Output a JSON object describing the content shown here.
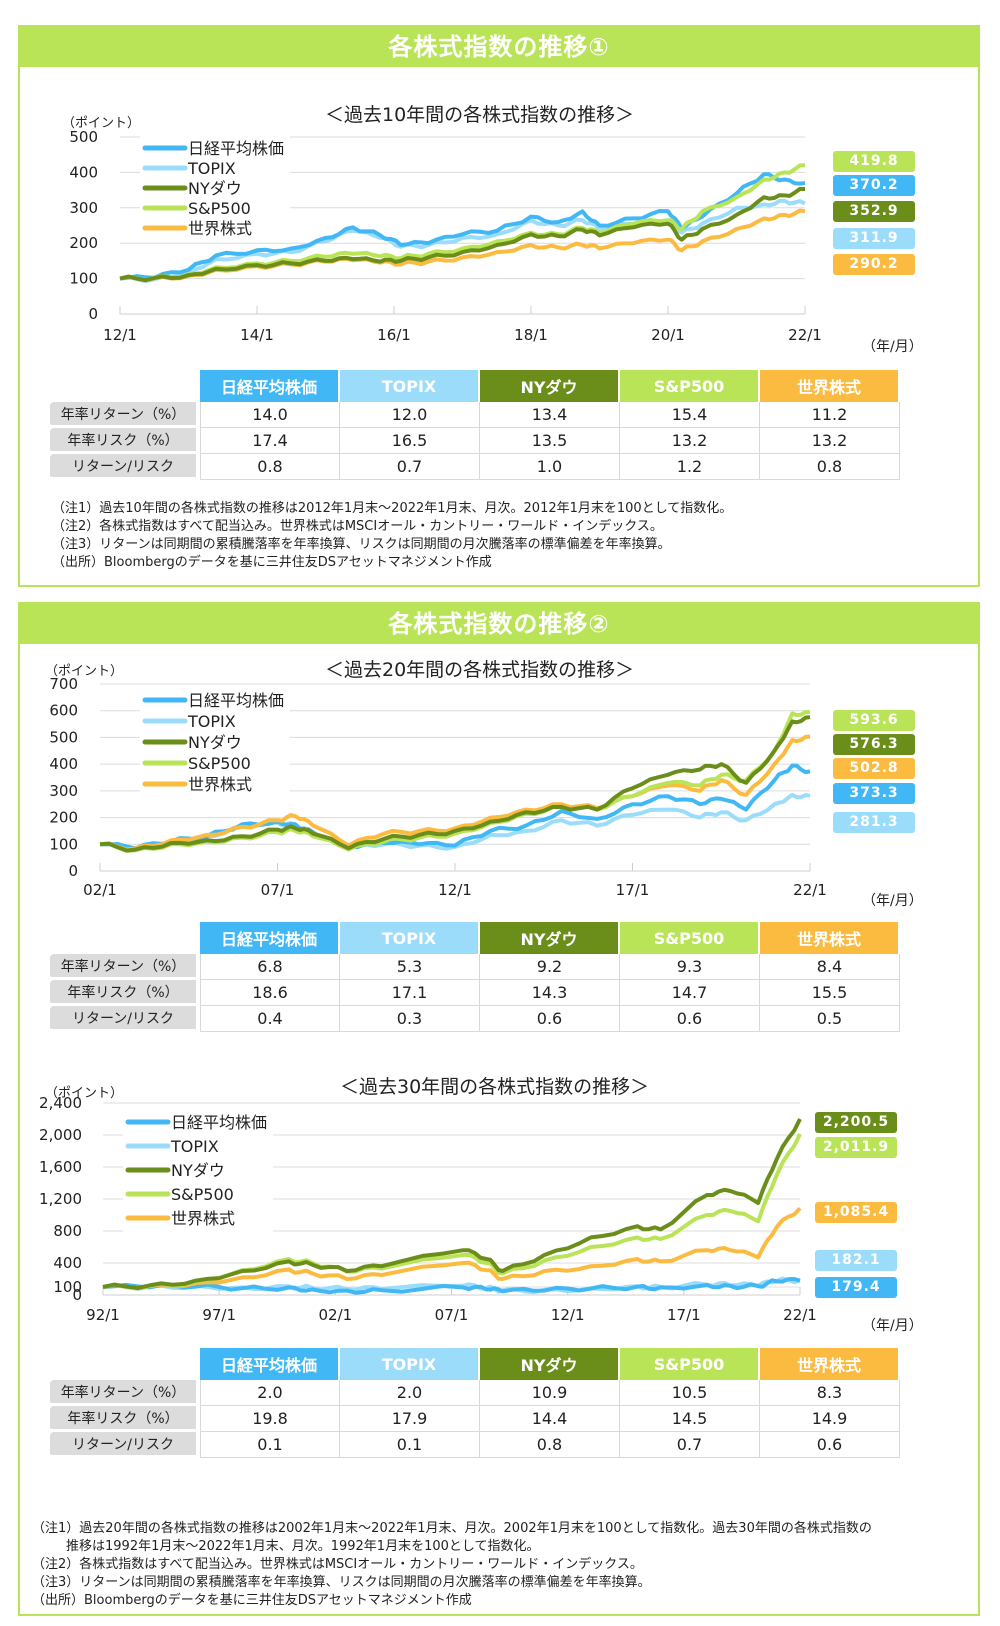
{
  "colors": {
    "nikkei": "#41b8f5",
    "topix": "#9bdcfb",
    "nydow": "#6b8e1a",
    "sp500": "#b9e457",
    "world": "#fbbb40",
    "header": "#b9e457"
  },
  "panels": [
    {
      "header": "各株式指数の推移①",
      "notes": [
        {
          "tag": "（注1）",
          "text": "過去10年間の各株式指数の推移は2012年1月末～2022年1月末、月次。2012年1月末を100として指数化。"
        },
        {
          "tag": "（注2）",
          "text": "各株式指数はすべて配当込み。世界株式はMSCIオール・カントリー・ワールド・インデックス。"
        },
        {
          "tag": "（注3）",
          "text": "リターンは同期間の累積騰落率を年率換算、リスクは同期間の月次騰落率の標準偏差を年率換算。"
        },
        {
          "tag": "（出所）",
          "text": "Bloombergのデータを基に三井住友DSアセットマネジメント作成"
        }
      ]
    },
    {
      "header": "各株式指数の推移②",
      "notes": [
        {
          "tag": "（注1）",
          "text": "過去20年間の各株式指数の推移は2002年1月末～2022年1月末、月次。2002年1月末を100として指数化。過去30年間の各株式指数の"
        },
        {
          "tag": "",
          "text": "推移は1992年1月末～2022年1月末、月次。1992年1月末を100として指数化。"
        },
        {
          "tag": "（注2）",
          "text": "各株式指数はすべて配当込み。世界株式はMSCIオール・カントリー・ワールド・インデックス。"
        },
        {
          "tag": "（注3）",
          "text": "リターンは同期間の累積騰落率を年率換算、リスクは同期間の月次騰落率の標準偏差を年率換算。"
        },
        {
          "tag": "（出所）",
          "text": "Bloombergのデータを基に三井住友DSアセットマネジメント作成"
        }
      ]
    }
  ],
  "table_headers": [
    "日経平均株価",
    "TOPIX",
    "NYダウ",
    "S&P500",
    "世界株式"
  ],
  "row_labels": [
    "年率リターン（%）",
    "年率リスク（%）",
    "リターン/リスク"
  ],
  "chart_data": [
    {
      "type": "line",
      "title": "＜過去10年間の各株式指数の推移＞",
      "ylabel": "（ポイント）",
      "xlabel": "（年/月）",
      "ylim": [
        0,
        500
      ],
      "yticks": [
        0,
        100,
        200,
        300,
        400,
        500
      ],
      "ytick_labels": [
        "0",
        "100",
        "200",
        "300",
        "400",
        "500"
      ],
      "xlim": [
        2012.0,
        2022.0
      ],
      "xticks": [
        2012,
        2014,
        2016,
        2018,
        2020,
        2022
      ],
      "xtick_labels": [
        "12/1",
        "14/1",
        "16/1",
        "18/1",
        "20/1",
        "22/1"
      ],
      "grid": true,
      "legend": "top-left",
      "x": [
        2012.0,
        2012.5,
        2013.0,
        2013.4,
        2014.0,
        2014.5,
        2015.0,
        2015.4,
        2015.8,
        2016.1,
        2016.5,
        2017.0,
        2017.5,
        2018.0,
        2018.4,
        2018.75,
        2019.0,
        2019.5,
        2020.0,
        2020.2,
        2020.5,
        2021.0,
        2021.4,
        2021.7,
        2022.0
      ],
      "series": [
        {
          "name": "日経平均株価",
          "key": "nikkei",
          "end_label": "370.2",
          "values": [
            100,
            102,
            125,
            165,
            180,
            185,
            215,
            245,
            222,
            195,
            200,
            225,
            235,
            275,
            260,
            290,
            250,
            270,
            290,
            240,
            275,
            340,
            395,
            380,
            370
          ]
        },
        {
          "name": "TOPIX",
          "key": "topix",
          "end_label": "311.9",
          "values": [
            100,
            98,
            120,
            155,
            170,
            175,
            205,
            235,
            215,
            190,
            195,
            215,
            225,
            265,
            250,
            265,
            240,
            255,
            265,
            230,
            255,
            300,
            310,
            320,
            312
          ]
        },
        {
          "name": "NYダウ",
          "key": "nydow",
          "end_label": "352.9",
          "values": [
            100,
            102,
            110,
            128,
            138,
            143,
            150,
            155,
            148,
            150,
            160,
            175,
            195,
            225,
            220,
            238,
            222,
            245,
            255,
            210,
            240,
            280,
            330,
            335,
            353
          ]
        },
        {
          "name": "S&P500",
          "key": "sp500",
          "end_label": "419.8",
          "values": [
            100,
            103,
            112,
            132,
            143,
            150,
            162,
            170,
            163,
            158,
            170,
            185,
            205,
            230,
            225,
            243,
            228,
            255,
            265,
            240,
            290,
            330,
            380,
            400,
            420
          ]
        },
        {
          "name": "世界株式",
          "key": "world",
          "end_label": "290.2",
          "values": [
            100,
            101,
            108,
            125,
            135,
            140,
            148,
            152,
            145,
            140,
            148,
            160,
            175,
            195,
            188,
            195,
            185,
            200,
            210,
            180,
            205,
            240,
            270,
            280,
            290
          ]
        }
      ],
      "end_label_order": [
        "sp500",
        "nikkei",
        "nydow",
        "topix",
        "world"
      ],
      "table": {
        "returns": [
          "14.0",
          "12.0",
          "13.4",
          "15.4",
          "11.2"
        ],
        "risks": [
          "17.4",
          "16.5",
          "13.5",
          "13.2",
          "13.2"
        ],
        "ratios": [
          "0.8",
          "0.7",
          "1.0",
          "1.2",
          "0.8"
        ]
      }
    },
    {
      "type": "line",
      "title": "＜過去20年間の各株式指数の推移＞",
      "ylabel": "（ポイント）",
      "xlabel": "（年/月）",
      "ylim": [
        0,
        700
      ],
      "yticks": [
        0,
        100,
        200,
        300,
        400,
        500,
        600,
        700
      ],
      "ytick_labels": [
        "0",
        "100",
        "200",
        "300",
        "400",
        "500",
        "600",
        "700"
      ],
      "xlim": [
        2002.0,
        2022.0
      ],
      "xticks": [
        2002,
        2007,
        2012,
        2017,
        2022
      ],
      "xtick_labels": [
        "02/1",
        "07/1",
        "12/1",
        "17/1",
        "22/1"
      ],
      "grid": true,
      "legend": "top-left",
      "x": [
        2002.0,
        2003.0,
        2004.0,
        2005.0,
        2006.0,
        2007.0,
        2007.5,
        2008.0,
        2009.0,
        2010.0,
        2011.0,
        2012.0,
        2013.0,
        2014.0,
        2015.0,
        2016.0,
        2017.0,
        2018.0,
        2018.9,
        2019.5,
        2020.2,
        2021.0,
        2021.5,
        2022.0
      ],
      "series": [
        {
          "name": "日経平均株価",
          "key": "nikkei",
          "end_label": "373.3",
          "values": [
            100,
            85,
            110,
            130,
            175,
            185,
            175,
            145,
            90,
            105,
            100,
            95,
            150,
            170,
            225,
            195,
            250,
            280,
            250,
            270,
            230,
            340,
            395,
            373
          ]
        },
        {
          "name": "TOPIX",
          "key": "topix",
          "end_label": "281.3",
          "values": [
            100,
            82,
            108,
            128,
            170,
            180,
            168,
            140,
            85,
            100,
            95,
            90,
            135,
            150,
            190,
            170,
            210,
            230,
            200,
            220,
            190,
            250,
            285,
            281
          ]
        },
        {
          "name": "NYダウ",
          "key": "nydow",
          "end_label": "576.3",
          "values": [
            100,
            80,
            105,
            115,
            130,
            155,
            160,
            140,
            85,
            120,
            135,
            150,
            185,
            220,
            240,
            230,
            310,
            360,
            380,
            400,
            330,
            450,
            560,
            576
          ]
        },
        {
          "name": "S&P500",
          "key": "sp500",
          "end_label": "593.6",
          "values": [
            100,
            78,
            100,
            110,
            125,
            145,
            150,
            130,
            80,
            110,
            125,
            140,
            180,
            215,
            240,
            230,
            280,
            330,
            320,
            360,
            340,
            450,
            590,
            594
          ]
        },
        {
          "name": "世界株式",
          "key": "world",
          "end_label": "502.8",
          "values": [
            100,
            85,
            115,
            135,
            165,
            190,
            205,
            170,
            95,
            140,
            150,
            160,
            200,
            230,
            250,
            235,
            280,
            320,
            300,
            340,
            285,
            400,
            490,
            503
          ]
        }
      ],
      "end_label_order": [
        "sp500",
        "nydow",
        "world",
        "nikkei",
        "topix"
      ],
      "table": {
        "returns": [
          "6.8",
          "5.3",
          "9.2",
          "9.3",
          "8.4"
        ],
        "risks": [
          "18.6",
          "17.1",
          "14.3",
          "14.7",
          "15.5"
        ],
        "ratios": [
          "0.4",
          "0.3",
          "0.6",
          "0.6",
          "0.5"
        ]
      }
    },
    {
      "type": "line",
      "title": "＜過去30年間の各株式指数の推移＞",
      "ylabel": "（ポイント）",
      "xlabel": "（年/月）",
      "ylim": [
        0,
        2400
      ],
      "yticks": [
        0,
        100,
        400,
        800,
        1200,
        1600,
        2000,
        2400
      ],
      "ytick_labels": [
        "0",
        "100",
        "400",
        "800",
        "1,200",
        "1,600",
        "2,000",
        "2,400"
      ],
      "xlim": [
        1992.0,
        2022.0
      ],
      "xticks": [
        1992,
        1997,
        2002,
        2007,
        2012,
        2017,
        2022
      ],
      "xtick_labels": [
        "92/1",
        "97/1",
        "02/1",
        "07/1",
        "12/1",
        "17/1",
        "22/1"
      ],
      "grid": true,
      "legend": "top-left",
      "x": [
        1992.0,
        1994.0,
        1996.0,
        1998.0,
        2000.0,
        2001.0,
        2002.5,
        2004.0,
        2007.5,
        2008.5,
        2009.2,
        2011.0,
        2013.0,
        2015.0,
        2016.0,
        2018.0,
        2019.0,
        2020.2,
        2021.0,
        2022.0
      ],
      "series": [
        {
          "name": "日経平均株価",
          "key": "nikkei",
          "end_label": "179.4",
          "values": [
            100,
            95,
            105,
            85,
            95,
            70,
            55,
            60,
            95,
            70,
            45,
            55,
            80,
            105,
            95,
            125,
            115,
            110,
            170,
            179
          ]
        },
        {
          "name": "TOPIX",
          "key": "topix",
          "end_label": "182.1",
          "values": [
            100,
            105,
            115,
            95,
            110,
            90,
            70,
            75,
            115,
            85,
            60,
            65,
            85,
            110,
            100,
            130,
            120,
            115,
            175,
            182
          ]
        },
        {
          "name": "NYダウ",
          "key": "nydow",
          "end_label": "2,200.5",
          "values": [
            100,
            120,
            180,
            300,
            420,
            380,
            300,
            360,
            560,
            450,
            300,
            500,
            720,
            860,
            820,
            1250,
            1300,
            1150,
            1700,
            2200
          ]
        },
        {
          "name": "S&P500",
          "key": "sp500",
          "end_label": "2,011.9",
          "values": [
            100,
            115,
            170,
            310,
            450,
            400,
            290,
            330,
            500,
            400,
            270,
            430,
            600,
            720,
            700,
            1000,
            1050,
            920,
            1500,
            2012
          ]
        },
        {
          "name": "世界株式",
          "key": "world",
          "end_label": "1,085.4",
          "values": [
            100,
            110,
            150,
            220,
            320,
            270,
            200,
            250,
            400,
            310,
            200,
            300,
            360,
            450,
            420,
            560,
            560,
            470,
            850,
            1085
          ]
        }
      ],
      "end_label_order": [
        "nydow",
        "sp500",
        "world",
        "topix",
        "nikkei"
      ],
      "table": {
        "returns": [
          "2.0",
          "2.0",
          "10.9",
          "10.5",
          "8.3"
        ],
        "risks": [
          "19.8",
          "17.9",
          "14.4",
          "14.5",
          "14.9"
        ],
        "ratios": [
          "0.1",
          "0.1",
          "0.8",
          "0.7",
          "0.6"
        ]
      }
    }
  ]
}
